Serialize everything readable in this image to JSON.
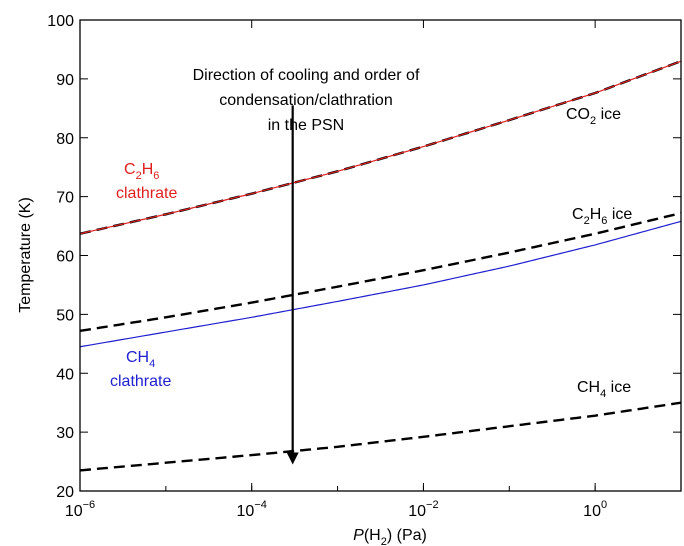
{
  "chart_data": {
    "type": "line",
    "title": "",
    "xlabel": {
      "italic": "P",
      "normal": "(H",
      "sub": "2",
      "tail": ") (Pa)"
    },
    "ylabel": "Temperature (K)",
    "x_scale": "log",
    "xlim": [
      1e-06,
      10
    ],
    "ylim": [
      20,
      100
    ],
    "grid": false,
    "legend": "none",
    "x_ticks": [
      {
        "value": 1e-06,
        "base": "10",
        "exp": "−6"
      },
      {
        "value": 0.0001,
        "base": "10",
        "exp": "−4"
      },
      {
        "value": 0.01,
        "base": "10",
        "exp": "−2"
      },
      {
        "value": 1,
        "base": "10",
        "exp": "0"
      }
    ],
    "y_ticks": [
      "20",
      "30",
      "40",
      "50",
      "60",
      "70",
      "80",
      "90",
      "100"
    ],
    "x": [
      1e-06,
      1e-05,
      0.0001,
      0.001,
      0.01,
      0.1,
      1,
      10
    ],
    "series": [
      {
        "key": "co2_ice",
        "color": "#000000",
        "dash": true,
        "width": 2.4,
        "values": [
          63.7,
          67.0,
          70.5,
          74.3,
          78.5,
          83.0,
          87.6,
          93.0
        ]
      },
      {
        "key": "c2h6_clathrate",
        "color": "#e02020",
        "dash": false,
        "width": 1.2,
        "values": [
          63.7,
          67.0,
          70.5,
          74.3,
          78.5,
          83.0,
          87.6,
          93.0
        ]
      },
      {
        "key": "c2h6_ice",
        "color": "#000000",
        "dash": true,
        "width": 2.4,
        "values": [
          47.2,
          49.5,
          52.0,
          54.7,
          57.5,
          60.5,
          63.7,
          67.2
        ]
      },
      {
        "key": "ch4_clathrate",
        "color": "#2020d0",
        "dash": false,
        "width": 1.2,
        "values": [
          44.5,
          47.0,
          49.5,
          52.2,
          55.0,
          58.2,
          61.8,
          65.8
        ]
      },
      {
        "key": "ch4_ice",
        "color": "#000000",
        "dash": true,
        "width": 2.4,
        "values": [
          23.5,
          24.8,
          26.1,
          27.5,
          29.2,
          31.0,
          32.8,
          35.0
        ]
      }
    ],
    "annotations": {
      "direction": [
        "Direction of cooling and order of",
        "condensation/clathration",
        "in the PSN"
      ],
      "arrow": {
        "x": 0.0003,
        "y_start": 85.5,
        "y_end": 24.5
      },
      "co2_ice": {
        "pre": "CO",
        "sub": "2",
        "post": " ice"
      },
      "c2h6_ice": {
        "pre": "C",
        "sub1": "2",
        "mid": "H",
        "sub2": "6",
        "post": " ice"
      },
      "ch4_ice": {
        "pre": "CH",
        "sub": "4",
        "post": " ice"
      },
      "c2h6_clathrate": {
        "pre": "C",
        "sub1": "2",
        "mid": "H",
        "sub2": "6",
        "line2": "clathrate",
        "color": "#e02020"
      },
      "ch4_clathrate": {
        "pre": "CH",
        "sub": "4",
        "line2": "clathrate",
        "color": "#2020d0"
      }
    }
  }
}
